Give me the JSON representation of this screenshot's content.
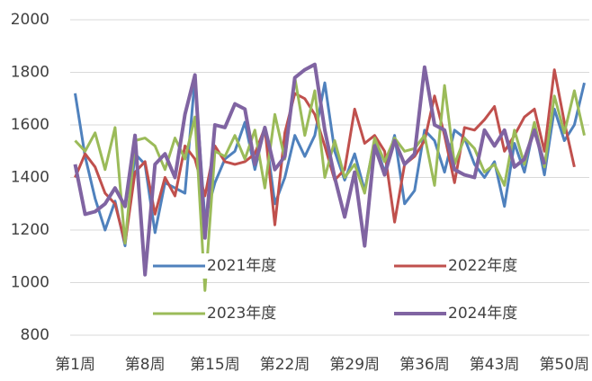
{
  "chart_data": {
    "type": "line",
    "categories": [
      "第1周",
      null,
      null,
      null,
      null,
      null,
      null,
      "第8周",
      null,
      null,
      null,
      null,
      null,
      null,
      "第15周",
      null,
      null,
      null,
      null,
      null,
      null,
      "第22周",
      null,
      null,
      null,
      null,
      null,
      null,
      "第29周",
      null,
      null,
      null,
      null,
      null,
      null,
      "第36周",
      null,
      null,
      null,
      null,
      null,
      null,
      "第43周",
      null,
      null,
      null,
      null,
      null,
      null,
      "第50周",
      null,
      null
    ],
    "ylim": [
      800,
      2000
    ],
    "yticks": [
      800,
      1000,
      1200,
      1400,
      1600,
      1800,
      2000
    ],
    "grid": true,
    "series": [
      {
        "name": "2021年度",
        "color": "#4f81bd",
        "values": [
          1720,
          1480,
          1320,
          1200,
          1310,
          1140,
          1490,
          1450,
          1190,
          1380,
          1360,
          1340,
          1780,
          1240,
          1380,
          1470,
          1500,
          1610,
          1430,
          1590,
          1300,
          1400,
          1560,
          1480,
          1560,
          1760,
          1500,
          1390,
          1490,
          1350,
          1540,
          1420,
          1560,
          1300,
          1350,
          1580,
          1540,
          1420,
          1580,
          1550,
          1450,
          1400,
          1460,
          1290,
          1530,
          1420,
          1600,
          1410,
          1660,
          1540,
          1600,
          1760
        ]
      },
      {
        "name": "2022年度",
        "color": "#c0504d",
        "values": [
          1400,
          1490,
          1440,
          1340,
          1300,
          1150,
          1420,
          1460,
          1260,
          1400,
          1330,
          1520,
          1470,
          1330,
          1520,
          1460,
          1450,
          1460,
          1490,
          1590,
          1220,
          1570,
          1720,
          1700,
          1640,
          1520,
          1390,
          1430,
          1660,
          1530,
          1560,
          1500,
          1230,
          1450,
          1480,
          1540,
          1710,
          1560,
          1380,
          1590,
          1580,
          1620,
          1670,
          1500,
          1560,
          1630,
          1660,
          1500,
          1810,
          1610,
          1440,
          null
        ]
      },
      {
        "name": "2023年度",
        "color": "#9bbb59",
        "values": [
          1540,
          1500,
          1570,
          1430,
          1590,
          1150,
          1540,
          1550,
          1520,
          1430,
          1550,
          1470,
          1630,
          970,
          1500,
          1480,
          1560,
          1470,
          1580,
          1360,
          1640,
          1470,
          1780,
          1560,
          1730,
          1400,
          1540,
          1400,
          1450,
          1340,
          1550,
          1460,
          1550,
          1500,
          1510,
          1560,
          1370,
          1750,
          1450,
          1550,
          1510,
          1420,
          1450,
          1370,
          1580,
          1450,
          1610,
          1440,
          1710,
          1570,
          1730,
          1560
        ]
      },
      {
        "name": "2024年度",
        "color": "#8064a2",
        "values": [
          1450,
          1260,
          1270,
          1300,
          1360,
          1290,
          1560,
          1030,
          1450,
          1490,
          1400,
          1640,
          1790,
          1170,
          1600,
          1590,
          1680,
          1660,
          1450,
          1590,
          1430,
          1480,
          1780,
          1810,
          1830,
          1580,
          1400,
          1250,
          1420,
          1140,
          1520,
          1410,
          1540,
          1450,
          1490,
          1820,
          1600,
          1580,
          1430,
          1410,
          1400,
          1580,
          1520,
          1580,
          1440,
          1470,
          1580,
          1450,
          null,
          null,
          null,
          null
        ]
      }
    ]
  }
}
